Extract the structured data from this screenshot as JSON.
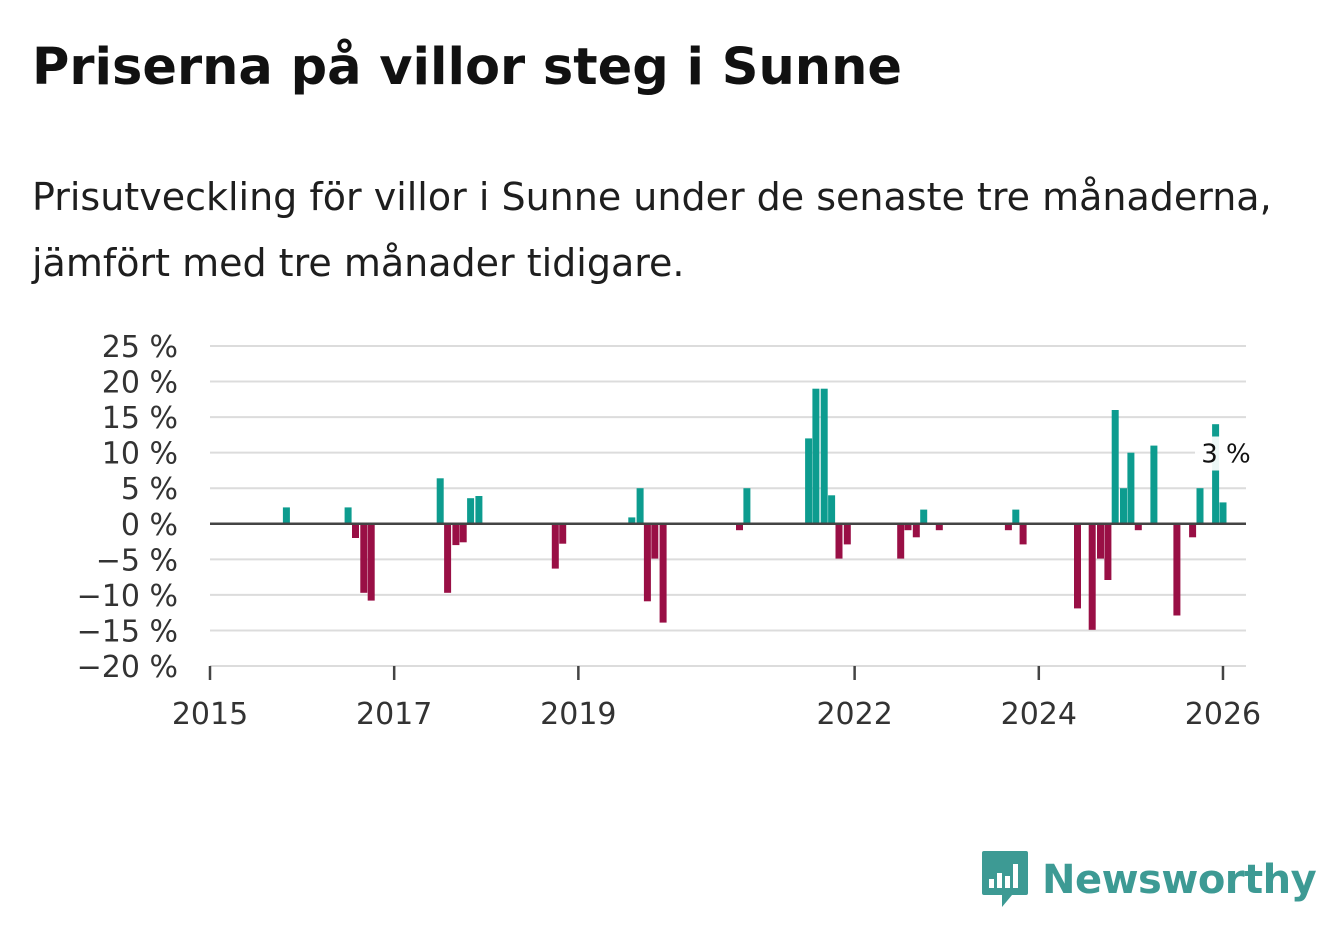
{
  "header": {
    "title": "Priserna på villor steg i Sunne",
    "subtitle": "Prisutveckling för villor i Sunne under de senaste tre månaderna, jämfört med tre månader tidigare."
  },
  "chart_data": {
    "type": "bar",
    "title": "Priserna på villor steg i Sunne",
    "subtitle": "Prisutveckling för villor i Sunne under de senaste tre månaderna, jämfört med tre månader tidigare.",
    "xlabel": "",
    "ylabel": "",
    "xlim": [
      2015.0,
      2026.25
    ],
    "ylim": [
      -20,
      25
    ],
    "y_ticks": [
      25,
      20,
      15,
      10,
      5,
      0,
      -5,
      -10,
      -15,
      -20
    ],
    "y_tick_labels": [
      "25 %",
      "20 %",
      "15 %",
      "10 %",
      "5 %",
      "0 %",
      "−5 %",
      "−10 %",
      "−15 %",
      "−20 %"
    ],
    "x_ticks": [
      2015,
      2017,
      2019,
      2022,
      2024,
      2026
    ],
    "x_tick_labels": [
      "2015",
      "2017",
      "2019",
      "2022",
      "2024",
      "2026"
    ],
    "grid": true,
    "positive_color": "#0d9c8f",
    "negative_color": "#990f45",
    "series": [
      {
        "name": "Prisutveckling",
        "points": [
          {
            "t": 2015.83,
            "v": 2.3
          },
          {
            "t": 2016.5,
            "v": 2.3
          },
          {
            "t": 2016.58,
            "v": -2.0
          },
          {
            "t": 2016.67,
            "v": -9.7
          },
          {
            "t": 2016.75,
            "v": -10.8
          },
          {
            "t": 2017.5,
            "v": 6.4
          },
          {
            "t": 2017.58,
            "v": -9.7
          },
          {
            "t": 2017.67,
            "v": -3.0
          },
          {
            "t": 2017.75,
            "v": -2.6
          },
          {
            "t": 2017.83,
            "v": 3.6
          },
          {
            "t": 2017.92,
            "v": 3.9
          },
          {
            "t": 2018.75,
            "v": -6.3
          },
          {
            "t": 2018.83,
            "v": -2.8
          },
          {
            "t": 2019.58,
            "v": 0.9
          },
          {
            "t": 2019.67,
            "v": 5.0
          },
          {
            "t": 2019.75,
            "v": -10.9
          },
          {
            "t": 2019.83,
            "v": -4.9
          },
          {
            "t": 2019.92,
            "v": -13.9
          },
          {
            "t": 2020.75,
            "v": -0.9
          },
          {
            "t": 2020.83,
            "v": 5.0
          },
          {
            "t": 2021.5,
            "v": 12.0
          },
          {
            "t": 2021.58,
            "v": 19.0
          },
          {
            "t": 2021.67,
            "v": 19.0
          },
          {
            "t": 2021.75,
            "v": 4.0
          },
          {
            "t": 2021.83,
            "v": -4.9
          },
          {
            "t": 2021.92,
            "v": -2.9
          },
          {
            "t": 2022.5,
            "v": -4.9
          },
          {
            "t": 2022.58,
            "v": -0.9
          },
          {
            "t": 2022.67,
            "v": -1.9
          },
          {
            "t": 2022.75,
            "v": 2.0
          },
          {
            "t": 2022.92,
            "v": -0.9
          },
          {
            "t": 2023.67,
            "v": -0.9
          },
          {
            "t": 2023.75,
            "v": 2.0
          },
          {
            "t": 2023.83,
            "v": -2.9
          },
          {
            "t": 2024.42,
            "v": -11.9
          },
          {
            "t": 2024.58,
            "v": -14.9
          },
          {
            "t": 2024.67,
            "v": -4.9
          },
          {
            "t": 2024.75,
            "v": -7.9
          },
          {
            "t": 2024.83,
            "v": 16.0
          },
          {
            "t": 2024.92,
            "v": 5.0
          },
          {
            "t": 2025.0,
            "v": 10.0
          },
          {
            "t": 2025.08,
            "v": -0.9
          },
          {
            "t": 2025.25,
            "v": 11.0
          },
          {
            "t": 2025.5,
            "v": -12.9
          },
          {
            "t": 2025.67,
            "v": -1.9
          },
          {
            "t": 2025.75,
            "v": 5.0
          },
          {
            "t": 2025.92,
            "v": 14.0
          },
          {
            "t": 2026.0,
            "v": 3.0
          }
        ]
      }
    ],
    "annotation": {
      "text": "3 %",
      "t": 2026.0,
      "v": 3.0
    }
  },
  "brand": {
    "name": "Newsworthy",
    "color": "#3d9a94",
    "icon": "newsworthy-logo-icon"
  }
}
